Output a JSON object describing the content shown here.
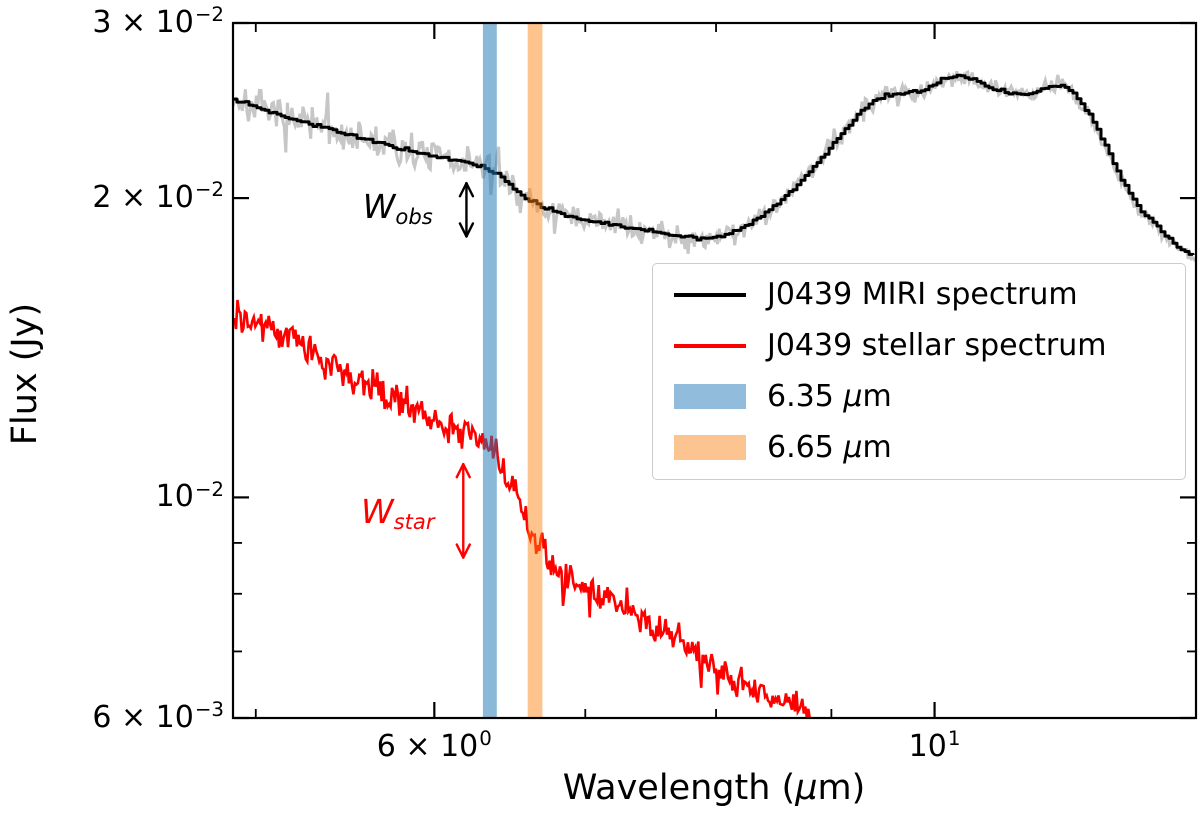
{
  "chart_data": {
    "type": "line",
    "title": "",
    "xlabel": "Wavelength (μm)",
    "ylabel": "Flux (Jy)",
    "x_scale": "log",
    "y_scale": "log",
    "xlim": [
      4.885,
      13.06
    ],
    "ylim": [
      0.006,
      0.03
    ],
    "grid": false,
    "axes": {
      "x_ticks_major": [
        {
          "value": 6,
          "mant": "6 × 10",
          "exp": "0"
        },
        {
          "value": 10,
          "mant": "10",
          "exp": "1"
        }
      ],
      "x_ticks_minor": [
        5,
        7,
        8,
        9
      ],
      "y_ticks_labeled": [
        {
          "value": 0.03,
          "mant": "3 × 10",
          "exp": "−2"
        },
        {
          "value": 0.02,
          "mant": "2 × 10",
          "exp": "−2"
        },
        {
          "value": 0.01,
          "mant": "10",
          "exp": "−2"
        },
        {
          "value": 0.006,
          "mant": "6 × 10",
          "exp": "−3"
        }
      ],
      "y_ticks_minor": [
        0.007,
        0.008,
        0.009
      ]
    },
    "series": [
      {
        "id": "miri_unsmoothed",
        "name": "J0439 MIRI spectrum (unsmoothed trace)",
        "color": "#c6c6c6",
        "width": 3,
        "style": "noisy",
        "noise_amp_start": 0.0135,
        "noise_amp_end": 0.004,
        "points_of": "miri"
      },
      {
        "id": "miri",
        "name": "J0439 MIRI spectrum",
        "color": "#000000",
        "width": 3,
        "style": "step",
        "noise_amp": 0.0012,
        "points": [
          [
            4.885,
            0.0252
          ],
          [
            5.0,
            0.0247
          ],
          [
            5.2,
            0.024
          ],
          [
            5.4,
            0.0234
          ],
          [
            5.6,
            0.0229
          ],
          [
            5.8,
            0.0224
          ],
          [
            6.0,
            0.022
          ],
          [
            6.15,
            0.0218
          ],
          [
            6.3,
            0.0215
          ],
          [
            6.4,
            0.0211
          ],
          [
            6.5,
            0.0205
          ],
          [
            6.6,
            0.0199
          ],
          [
            6.7,
            0.0196
          ],
          [
            6.85,
            0.0192
          ],
          [
            7.0,
            0.019
          ],
          [
            7.3,
            0.0187
          ],
          [
            7.6,
            0.0184
          ],
          [
            7.9,
            0.0182
          ],
          [
            8.1,
            0.0184
          ],
          [
            8.3,
            0.0189
          ],
          [
            8.5,
            0.0197
          ],
          [
            8.7,
            0.0207
          ],
          [
            8.9,
            0.0219
          ],
          [
            9.1,
            0.0233
          ],
          [
            9.3,
            0.0247
          ],
          [
            9.5,
            0.0254
          ],
          [
            9.7,
            0.0255
          ],
          [
            9.9,
            0.0257
          ],
          [
            10.1,
            0.0264
          ],
          [
            10.25,
            0.0266
          ],
          [
            10.4,
            0.0263
          ],
          [
            10.6,
            0.0258
          ],
          [
            10.8,
            0.0255
          ],
          [
            11.0,
            0.0254
          ],
          [
            11.2,
            0.0258
          ],
          [
            11.35,
            0.026
          ],
          [
            11.5,
            0.0256
          ],
          [
            11.7,
            0.0243
          ],
          [
            11.9,
            0.0226
          ],
          [
            12.1,
            0.0208
          ],
          [
            12.3,
            0.0196
          ],
          [
            12.55,
            0.0187
          ],
          [
            12.8,
            0.0179
          ],
          [
            13.06,
            0.0174
          ]
        ]
      },
      {
        "id": "stellar",
        "name": "J0439 stellar spectrum",
        "color": "#ff0000",
        "width": 2.6,
        "style": "noisy",
        "noise_amp": 0.0122,
        "points": [
          [
            4.885,
            0.0154
          ],
          [
            5.0,
            0.015
          ],
          [
            5.2,
            0.0143
          ],
          [
            5.4,
            0.0136
          ],
          [
            5.6,
            0.013
          ],
          [
            5.8,
            0.0125
          ],
          [
            6.0,
            0.012
          ],
          [
            6.15,
            0.0117
          ],
          [
            6.28,
            0.0115
          ],
          [
            6.38,
            0.0111
          ],
          [
            6.5,
            0.0101
          ],
          [
            6.65,
            0.00905
          ],
          [
            6.8,
            0.00845
          ],
          [
            7.0,
            0.00807
          ],
          [
            7.25,
            0.00775
          ],
          [
            7.5,
            0.00744
          ],
          [
            7.75,
            0.00714
          ],
          [
            8.0,
            0.0067
          ],
          [
            8.25,
            0.00645
          ],
          [
            8.5,
            0.00624
          ],
          [
            8.65,
            0.00614
          ],
          [
            8.83,
            0.006
          ]
        ]
      }
    ],
    "bands": [
      {
        "label": "6.35 μm",
        "center": 6.35,
        "from": 6.305,
        "to": 6.395,
        "color_overlay": "rgba(31,119,180,0.52)",
        "color_solid": "#92bcdc"
      },
      {
        "label": "6.65 μm",
        "center": 6.65,
        "from": 6.6,
        "to": 6.7,
        "color_overlay": "rgba(255,127,14,0.47)",
        "color_solid": "#fcc490"
      }
    ],
    "annotations": [
      {
        "id": "w_obs",
        "main": "W",
        "sub": "obs",
        "color": "#000000",
        "arrow_lambda": 6.2,
        "flux_top": 0.0207,
        "flux_bottom": 0.0183,
        "label_lambda": 5.78,
        "label_flux": 0.0195
      },
      {
        "id": "w_star",
        "main": "W",
        "sub": "star",
        "color": "#ff0000",
        "arrow_lambda": 6.18,
        "flux_top": 0.0108,
        "flux_bottom": 0.0087,
        "label_lambda": 5.78,
        "label_flux": 0.00963
      }
    ],
    "legend": {
      "position": "center right",
      "items": [
        {
          "label": "J0439 MIRI spectrum",
          "swatch": "line",
          "color": "#000000"
        },
        {
          "label": "J0439 stellar spectrum",
          "swatch": "line",
          "color": "#ff0000"
        },
        {
          "label": "6.35 μm",
          "swatch": "patch",
          "color": "#92bcdc"
        },
        {
          "label": "6.65 μm",
          "swatch": "patch",
          "color": "#fcc490"
        }
      ]
    }
  }
}
